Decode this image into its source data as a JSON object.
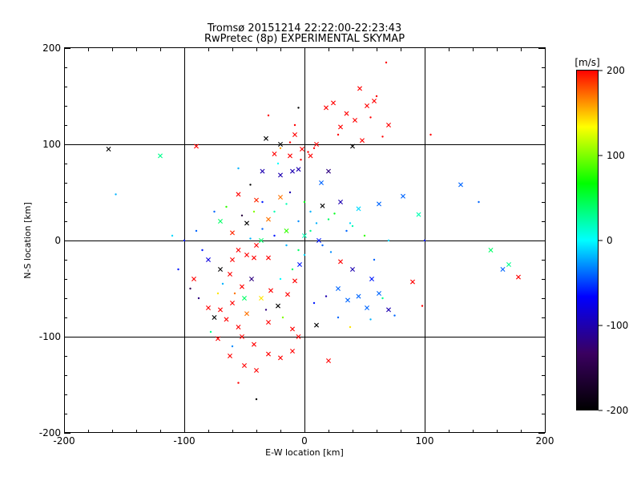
{
  "chart_data": {
    "type": "scatter",
    "title": "Tromsø 20151214 22:22:00-22:23:43",
    "subtitle": "RwPretec (8p) EXPERIMENTAL SKYMAP",
    "xlabel": "E-W location [km]",
    "ylabel": "N-S location [km]",
    "xlim": [
      -200,
      200
    ],
    "ylim": [
      -200,
      200
    ],
    "xticks": [
      -200,
      -100,
      0,
      100,
      200
    ],
    "yticks": [
      -200,
      -100,
      0,
      100,
      200
    ],
    "grid": true,
    "colorbar": {
      "label": "[m/s]",
      "min": -200,
      "max": 200,
      "ticks": [
        200,
        100,
        0,
        -100,
        -200
      ],
      "colormap": [
        "#000000",
        "#3a0060",
        "#0000ff",
        "#00ffff",
        "#00ff00",
        "#ffff00",
        "#ff0000"
      ]
    },
    "marker_types": [
      "cross",
      "dot"
    ],
    "points_cross": [
      [
        -163,
        95,
        -200
      ],
      [
        -120,
        88,
        30
      ],
      [
        -90,
        98,
        200
      ],
      [
        -32,
        106,
        -200
      ],
      [
        -25,
        90,
        200
      ],
      [
        -12,
        88,
        200
      ],
      [
        -8,
        110,
        200
      ],
      [
        -2,
        95,
        200
      ],
      [
        5,
        88,
        200
      ],
      [
        10,
        100,
        200
      ],
      [
        18,
        138,
        200
      ],
      [
        24,
        143,
        200
      ],
      [
        30,
        118,
        200
      ],
      [
        35,
        132,
        200
      ],
      [
        42,
        125,
        200
      ],
      [
        46,
        158,
        200
      ],
      [
        52,
        140,
        200
      ],
      [
        58,
        145,
        200
      ],
      [
        70,
        120,
        200
      ],
      [
        40,
        98,
        -200
      ],
      [
        48,
        104,
        200
      ],
      [
        -35,
        72,
        -100
      ],
      [
        -20,
        68,
        -100
      ],
      [
        -10,
        72,
        -100
      ],
      [
        14,
        60,
        -40
      ],
      [
        -20,
        45,
        170
      ],
      [
        -40,
        42,
        190
      ],
      [
        -55,
        48,
        200
      ],
      [
        15,
        36,
        -200
      ],
      [
        30,
        40,
        -100
      ],
      [
        45,
        33,
        -10
      ],
      [
        62,
        38,
        -40
      ],
      [
        82,
        46,
        -40
      ],
      [
        95,
        27,
        20
      ],
      [
        -30,
        22,
        170
      ],
      [
        -48,
        18,
        -200
      ],
      [
        -60,
        8,
        190
      ],
      [
        -70,
        20,
        40
      ],
      [
        -36,
        0,
        40
      ],
      [
        -15,
        10,
        80
      ],
      [
        0,
        5,
        20
      ],
      [
        12,
        0,
        -60
      ],
      [
        -55,
        -10,
        200
      ],
      [
        -60,
        -20,
        200
      ],
      [
        -48,
        -15,
        200
      ],
      [
        -40,
        -5,
        200
      ],
      [
        -30,
        -18,
        200
      ],
      [
        -70,
        -30,
        -200
      ],
      [
        -80,
        -20,
        -80
      ],
      [
        -62,
        -35,
        200
      ],
      [
        -52,
        -48,
        200
      ],
      [
        -44,
        -40,
        -120
      ],
      [
        -36,
        -60,
        140
      ],
      [
        -28,
        -52,
        200
      ],
      [
        -22,
        -68,
        -200
      ],
      [
        -14,
        -56,
        200
      ],
      [
        -8,
        -42,
        200
      ],
      [
        -4,
        -25,
        -60
      ],
      [
        30,
        -22,
        200
      ],
      [
        40,
        -30,
        -100
      ],
      [
        56,
        -40,
        -60
      ],
      [
        28,
        -50,
        -40
      ],
      [
        36,
        -62,
        -40
      ],
      [
        45,
        -58,
        -40
      ],
      [
        52,
        -70,
        -40
      ],
      [
        62,
        -55,
        -40
      ],
      [
        70,
        -72,
        -100
      ],
      [
        -80,
        -70,
        200
      ],
      [
        -70,
        -72,
        200
      ],
      [
        -65,
        -82,
        200
      ],
      [
        -55,
        -90,
        200
      ],
      [
        -48,
        -76,
        170
      ],
      [
        -60,
        -65,
        200
      ],
      [
        -75,
        -80,
        -200
      ],
      [
        -52,
        -100,
        200
      ],
      [
        -42,
        -108,
        200
      ],
      [
        -30,
        -118,
        200
      ],
      [
        -20,
        -122,
        200
      ],
      [
        -10,
        -115,
        200
      ],
      [
        -5,
        -100,
        200
      ],
      [
        10,
        -88,
        -200
      ],
      [
        20,
        -125,
        200
      ],
      [
        -50,
        -130,
        200
      ],
      [
        -40,
        -135,
        200
      ],
      [
        -62,
        -120,
        200
      ],
      [
        -72,
        -102,
        200
      ],
      [
        -50,
        -60,
        40
      ],
      [
        -42,
        -18,
        200
      ],
      [
        130,
        58,
        -40
      ],
      [
        155,
        -10,
        40
      ],
      [
        165,
        -30,
        -40
      ],
      [
        170,
        -25,
        30
      ],
      [
        178,
        -38,
        200
      ],
      [
        90,
        -43,
        200
      ],
      [
        -92,
        -40,
        200
      ],
      [
        -20,
        100,
        -200
      ],
      [
        -5,
        74,
        -100
      ],
      [
        20,
        72,
        -120
      ],
      [
        -30,
        -85,
        200
      ],
      [
        -10,
        -92,
        200
      ]
    ],
    "points_dot": [
      [
        -157,
        48,
        -20
      ],
      [
        -30,
        130,
        200
      ],
      [
        -5,
        138,
        -200
      ],
      [
        65,
        108,
        200
      ],
      [
        105,
        110,
        200
      ],
      [
        -20,
        96,
        160
      ],
      [
        -12,
        102,
        200
      ],
      [
        -3,
        84,
        200
      ],
      [
        3,
        92,
        200
      ],
      [
        8,
        96,
        200
      ],
      [
        -22,
        80,
        0
      ],
      [
        -8,
        120,
        200
      ],
      [
        28,
        110,
        200
      ],
      [
        55,
        128,
        200
      ],
      [
        60,
        150,
        200
      ],
      [
        68,
        185,
        200
      ],
      [
        -55,
        75,
        -20
      ],
      [
        -45,
        58,
        -200
      ],
      [
        -12,
        50,
        -100
      ],
      [
        0,
        40,
        60
      ],
      [
        -25,
        30,
        20
      ],
      [
        -5,
        20,
        -30
      ],
      [
        10,
        18,
        -20
      ],
      [
        20,
        22,
        40
      ],
      [
        35,
        10,
        -40
      ],
      [
        50,
        5,
        80
      ],
      [
        70,
        0,
        -10
      ],
      [
        100,
        0,
        -60
      ],
      [
        145,
        40,
        -40
      ],
      [
        -85,
        -10,
        -60
      ],
      [
        -95,
        -50,
        -140
      ],
      [
        -88,
        -60,
        -120
      ],
      [
        -78,
        -95,
        30
      ],
      [
        -60,
        -110,
        -30
      ],
      [
        -40,
        -165,
        -200
      ],
      [
        -55,
        -148,
        200
      ],
      [
        -20,
        -40,
        0
      ],
      [
        -10,
        -30,
        40
      ],
      [
        0,
        -15,
        -10
      ],
      [
        15,
        -5,
        -40
      ],
      [
        22,
        -12,
        -30
      ],
      [
        -45,
        2,
        -20
      ],
      [
        -35,
        12,
        -40
      ],
      [
        -25,
        5,
        -60
      ],
      [
        -15,
        -5,
        -20
      ],
      [
        -5,
        -10,
        40
      ],
      [
        5,
        10,
        30
      ],
      [
        40,
        15,
        20
      ],
      [
        -68,
        -45,
        -20
      ],
      [
        -58,
        -55,
        170
      ],
      [
        -32,
        -72,
        -120
      ],
      [
        -18,
        -80,
        100
      ],
      [
        8,
        -65,
        -60
      ],
      [
        18,
        -58,
        -100
      ],
      [
        28,
        -80,
        -40
      ],
      [
        38,
        -90,
        140
      ],
      [
        55,
        -82,
        -20
      ],
      [
        65,
        -60,
        30
      ],
      [
        75,
        -78,
        -40
      ],
      [
        98,
        -68,
        200
      ],
      [
        -65,
        35,
        80
      ],
      [
        -75,
        30,
        -40
      ],
      [
        -52,
        26,
        -160
      ],
      [
        -42,
        30,
        100
      ],
      [
        -35,
        40,
        -60
      ],
      [
        -15,
        38,
        20
      ],
      [
        5,
        30,
        -20
      ],
      [
        25,
        28,
        60
      ],
      [
        38,
        18,
        -10
      ],
      [
        58,
        -20,
        -40
      ],
      [
        -100,
        0,
        -60
      ],
      [
        -110,
        5,
        -10
      ],
      [
        -90,
        10,
        -40
      ],
      [
        -105,
        -30,
        -60
      ],
      [
        -72,
        -55,
        140
      ]
    ]
  }
}
